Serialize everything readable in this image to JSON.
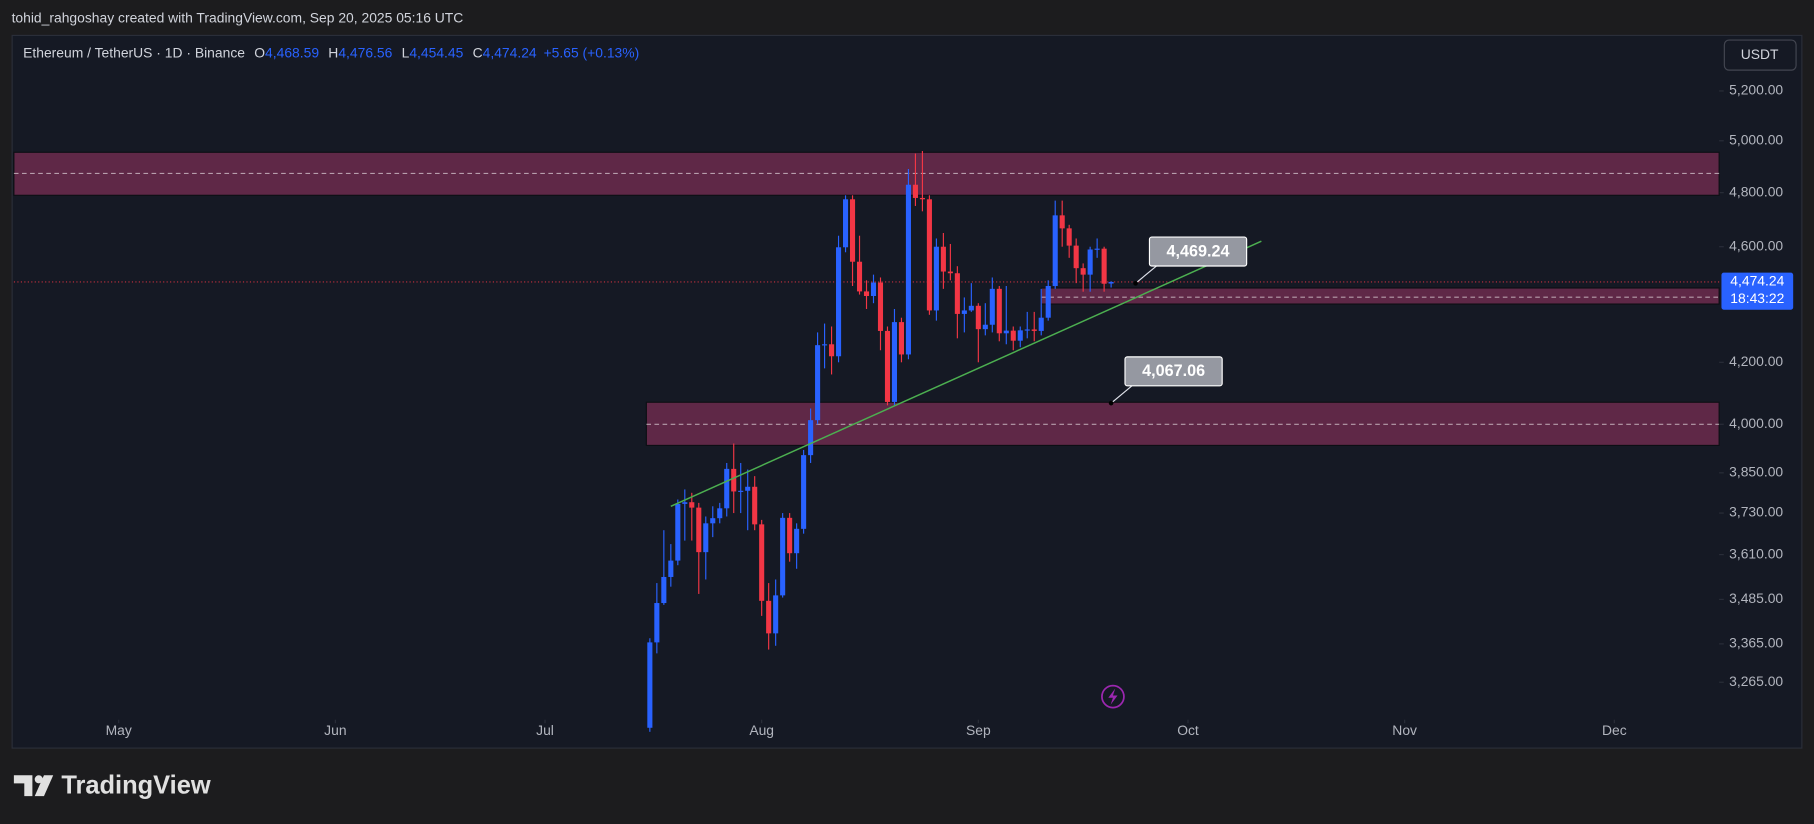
{
  "header": {
    "author_line": "tohid_rahgoshay created with TradingView.com, Sep 20, 2025 05:16 UTC"
  },
  "chart_data": {
    "type": "candlestick",
    "symbol": "Ethereum / TetherUS · 1D · Binance",
    "ohlc_legend": [
      {
        "key": "O",
        "value": "4,468.59"
      },
      {
        "key": "H",
        "value": "4,476.56"
      },
      {
        "key": "L",
        "value": "4,454.45"
      },
      {
        "key": "C",
        "value": "4,474.24"
      }
    ],
    "change": "+5.65 (+0.13%)",
    "currency": "USDT",
    "log_scale": true,
    "up_color": "#2962ff",
    "down_color": "#f23645",
    "x": [
      0,
      1,
      2,
      3,
      4,
      5,
      6,
      7,
      8,
      9,
      10,
      11,
      12,
      13,
      14,
      15,
      16,
      17,
      18,
      19,
      20,
      21,
      22,
      23,
      24,
      25,
      26,
      27,
      28,
      29,
      30,
      31,
      32,
      33,
      34,
      35,
      36,
      37,
      38,
      39,
      40,
      41,
      42,
      43,
      44,
      45,
      46,
      47,
      48,
      49,
      50,
      51,
      52,
      53,
      54,
      55,
      56,
      57,
      58,
      59,
      60,
      61,
      62,
      63,
      64,
      65,
      66
    ],
    "open": [
      3150,
      3369,
      3475,
      3547,
      3593,
      3757,
      3762,
      3746,
      3617,
      3700,
      3715,
      3744,
      3862,
      3794,
      3796,
      3808,
      3697,
      3481,
      3393,
      3496,
      3716,
      3614,
      3684,
      3904,
      4013,
      4257,
      4260,
      4220,
      4598,
      4775,
      4546,
      4441,
      4425,
      4472,
      4305,
      4071,
      4335,
      4226,
      4830,
      4780,
      4775,
      4375,
      4600,
      4511,
      4505,
      4363,
      4375,
      4391,
      4311,
      4326,
      4450,
      4297,
      4306,
      4272,
      4307,
      4310,
      4305,
      4350,
      4460,
      4715,
      4667,
      4604,
      4523,
      4500,
      4590,
      4593,
      4468.59
    ],
    "high": [
      3380,
      3530,
      3680,
      3640,
      3770,
      3800,
      3790,
      3760,
      3720,
      3750,
      3760,
      3880,
      3940,
      3880,
      3860,
      3840,
      3710,
      3530,
      3540,
      3730,
      3730,
      3700,
      3920,
      4050,
      4300,
      4330,
      4320,
      4640,
      4790,
      4790,
      4640,
      4480,
      4500,
      4490,
      4320,
      4380,
      4350,
      4890,
      4950,
      4960,
      4790,
      4630,
      4650,
      4610,
      4530,
      4420,
      4470,
      4400,
      4400,
      4490,
      4460,
      4460,
      4320,
      4320,
      4370,
      4370,
      4450,
      4480,
      4770,
      4770,
      4680,
      4630,
      4540,
      4600,
      4630,
      4600,
      4476.56
    ],
    "low": [
      3140,
      3340,
      3470,
      3520,
      3580,
      3650,
      3650,
      3500,
      3540,
      3660,
      3700,
      3720,
      3730,
      3730,
      3680,
      3680,
      3440,
      3350,
      3360,
      3490,
      3590,
      3570,
      3670,
      3880,
      4000,
      4180,
      4160,
      4200,
      4580,
      4460,
      4430,
      4380,
      4400,
      4240,
      4060,
      4060,
      4200,
      4210,
      4750,
      4730,
      4360,
      4340,
      4450,
      4480,
      4280,
      4300,
      4370,
      4200,
      4290,
      4300,
      4270,
      4260,
      4240,
      4250,
      4280,
      4270,
      4290,
      4340,
      4450,
      4600,
      4560,
      4470,
      4440,
      4440,
      4560,
      4440,
      4454.45
    ],
    "close": [
      3369,
      3475,
      3547,
      3593,
      3757,
      3762,
      3746,
      3617,
      3700,
      3715,
      3744,
      3862,
      3794,
      3796,
      3808,
      3697,
      3481,
      3393,
      3496,
      3716,
      3614,
      3684,
      3904,
      4013,
      4257,
      4260,
      4220,
      4598,
      4775,
      4546,
      4441,
      4425,
      4472,
      4305,
      4071,
      4335,
      4226,
      4830,
      4780,
      4775,
      4375,
      4600,
      4511,
      4505,
      4363,
      4375,
      4391,
      4311,
      4326,
      4450,
      4297,
      4306,
      4272,
      4307,
      4310,
      4305,
      4350,
      4460,
      4715,
      4667,
      4604,
      4523,
      4500,
      4590,
      4593,
      4468,
      4474.24
    ],
    "xlim": [
      -91,
      153
    ],
    "xticks": [
      {
        "value": -76,
        "label": "May"
      },
      {
        "value": -45,
        "label": "Jun"
      },
      {
        "value": -15,
        "label": "Jul"
      },
      {
        "value": 16,
        "label": "Aug"
      },
      {
        "value": 47,
        "label": "Sep"
      },
      {
        "value": 77,
        "label": "Oct"
      },
      {
        "value": 108,
        "label": "Nov"
      },
      {
        "value": 138,
        "label": "Dec"
      }
    ],
    "ylim": [
      3170,
      5420
    ],
    "yticks": [
      {
        "value": 5200,
        "label": "5,200.00"
      },
      {
        "value": 5000,
        "label": "5,000.00"
      },
      {
        "value": 4800,
        "label": "4,800.00"
      },
      {
        "value": 4600,
        "label": "4,600.00"
      },
      {
        "value": 4200,
        "label": "4,200.00"
      },
      {
        "value": 4000,
        "label": "4,000.00"
      },
      {
        "value": 3850,
        "label": "3,850.00"
      },
      {
        "value": 3730,
        "label": "3,730.00"
      },
      {
        "value": 3610,
        "label": "3,610.00"
      },
      {
        "value": 3485,
        "label": "3,485.00"
      },
      {
        "value": 3365,
        "label": "3,365.00"
      },
      {
        "value": 3265,
        "label": "3,265.00"
      }
    ],
    "last_price": {
      "value": 4474.24,
      "label": "4,474.24",
      "countdown": "18:43:22"
    },
    "zones": [
      {
        "low": 4790,
        "high": 4955,
        "mid": 4873,
        "start": -91
      },
      {
        "low": 4397,
        "high": 4453,
        "mid": 4421,
        "start": 56
      },
      {
        "low": 3934,
        "high": 4070,
        "mid": 4000,
        "start": -0.5
      }
    ],
    "trendline": {
      "x": [
        3,
        87.5
      ],
      "y": [
        3750,
        4620
      ],
      "color": "#4caf50"
    },
    "callouts": [
      {
        "value": 4469.24,
        "label": "4,469.24",
        "x": 69.5
      },
      {
        "value": 4067.06,
        "label": "4,067.06",
        "x": 66
      }
    ]
  },
  "footer": {
    "brand": "TradingView"
  }
}
